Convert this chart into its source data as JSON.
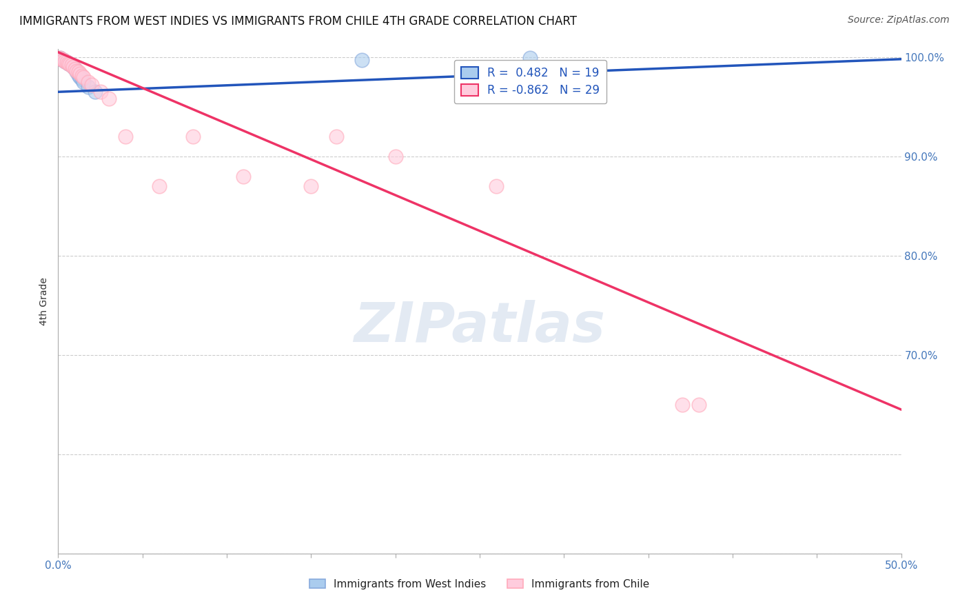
{
  "title": "IMMIGRANTS FROM WEST INDIES VS IMMIGRANTS FROM CHILE 4TH GRADE CORRELATION CHART",
  "source": "Source: ZipAtlas.com",
  "ylabel": "4th Grade",
  "x_min": 0.0,
  "x_max": 0.5,
  "y_min": 0.5,
  "y_max": 1.008,
  "x_ticks": [
    0.0,
    0.05,
    0.1,
    0.15,
    0.2,
    0.25,
    0.3,
    0.35,
    0.4,
    0.45,
    0.5
  ],
  "y_ticks": [
    0.5,
    0.6,
    0.7,
    0.8,
    0.9,
    1.0
  ],
  "y_tick_labels": [
    "",
    "",
    "70.0%",
    "80.0%",
    "90.0%",
    "100.0%"
  ],
  "grid_color": "#cccccc",
  "background_color": "#ffffff",
  "west_indies_color": "#88aadd",
  "chile_color": "#ffaabb",
  "west_indies_R": 0.482,
  "west_indies_N": 19,
  "chile_R": -0.862,
  "chile_N": 29,
  "west_indies_x": [
    0.001,
    0.002,
    0.003,
    0.004,
    0.005,
    0.006,
    0.007,
    0.008,
    0.009,
    0.01,
    0.011,
    0.012,
    0.013,
    0.014,
    0.015,
    0.018,
    0.022,
    0.18,
    0.28
  ],
  "west_indies_y": [
    0.999,
    0.998,
    0.997,
    0.996,
    0.995,
    0.994,
    0.993,
    0.992,
    0.99,
    0.988,
    0.985,
    0.982,
    0.98,
    0.978,
    0.975,
    0.97,
    0.965,
    0.997,
    0.999
  ],
  "chile_x": [
    0.001,
    0.002,
    0.003,
    0.004,
    0.005,
    0.006,
    0.007,
    0.008,
    0.009,
    0.01,
    0.011,
    0.012,
    0.013,
    0.014,
    0.015,
    0.018,
    0.02,
    0.025,
    0.03,
    0.04,
    0.06,
    0.08,
    0.11,
    0.15,
    0.165,
    0.2,
    0.26,
    0.37,
    0.38
  ],
  "chile_y": [
    0.999,
    0.998,
    0.997,
    0.996,
    0.995,
    0.994,
    0.993,
    0.992,
    0.99,
    0.988,
    0.986,
    0.985,
    0.983,
    0.981,
    0.98,
    0.975,
    0.972,
    0.965,
    0.958,
    0.92,
    0.87,
    0.92,
    0.88,
    0.87,
    0.92,
    0.9,
    0.87,
    0.65,
    0.65
  ],
  "legend_box_color": "#ffffff",
  "legend_box_edge": "#aaaaaa",
  "watermark_text": "ZIPatlas",
  "watermark_color": "#b0c4de",
  "watermark_alpha": 0.35,
  "line_blue_color": "#2255bb",
  "line_pink_color": "#ee3366",
  "wi_line_x0": 0.0,
  "wi_line_y0": 0.965,
  "wi_line_x1": 0.5,
  "wi_line_y1": 0.998,
  "ch_line_x0": 0.0,
  "ch_line_y0": 1.005,
  "ch_line_x1": 0.5,
  "ch_line_y1": 0.645
}
